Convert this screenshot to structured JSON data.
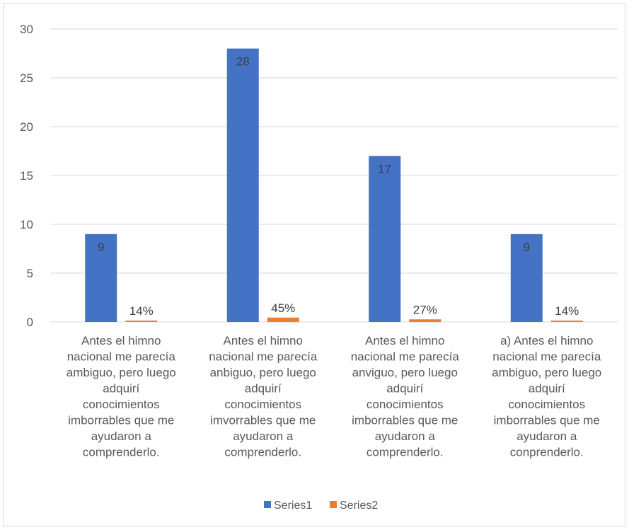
{
  "chart_data": {
    "type": "bar",
    "title": "",
    "xlabel": "",
    "ylabel": "",
    "ylim": [
      0,
      30
    ],
    "yticks": [
      0,
      5,
      10,
      15,
      20,
      25,
      30
    ],
    "grid": true,
    "legend_position": "bottom",
    "categories": [
      "Antes el himno nacional me parecía ambiguo, pero luego adquirí conocimientos imborrables que me ayudaron a comprenderlo.",
      "Antes el himno nacional me parecía anbiguo, pero luego adquirí conocimientos imvorrables que me ayudaron a comprenderlo.",
      "Antes el himno nacional me parecía anviguo, pero luego adquirí conocimientos imborrables que me ayudaron a comprenderlo.",
      "a) Antes el himno nacional me parecía ambiguo, pero luego adquirí conocimientos imborrables que me ayudaron a conprenderlo."
    ],
    "category_lines": [
      [
        "Antes el himno",
        "nacional me parecía",
        "ambiguo, pero luego",
        "adquirí",
        "conocimientos",
        "imborrables que me",
        "ayudaron a",
        "comprenderlo."
      ],
      [
        "Antes el himno",
        "nacional me parecía",
        "anbiguo, pero luego",
        "adquirí",
        "conocimientos",
        "imvorrables que me",
        "ayudaron a",
        "comprenderlo."
      ],
      [
        "Antes el himno",
        "nacional me parecía",
        "anviguo, pero luego",
        "adquirí",
        "conocimientos",
        "imborrables que me",
        "ayudaron a",
        "comprenderlo."
      ],
      [
        "a) Antes el himno",
        "nacional me parecía",
        "ambiguo, pero luego",
        "adquirí",
        "conocimientos",
        "imborrables que me",
        "ayudaron a",
        "conprenderlo."
      ]
    ],
    "series": [
      {
        "name": "Series1",
        "color": "#4472c4",
        "values": [
          9,
          28,
          17,
          9
        ],
        "labels": [
          "9",
          "28",
          "17",
          "9"
        ]
      },
      {
        "name": "Series2",
        "color": "#ed7d31",
        "values": [
          0.14,
          0.45,
          0.27,
          0.14
        ],
        "labels": [
          "14%",
          "45%",
          "27%",
          "14%"
        ]
      }
    ]
  }
}
